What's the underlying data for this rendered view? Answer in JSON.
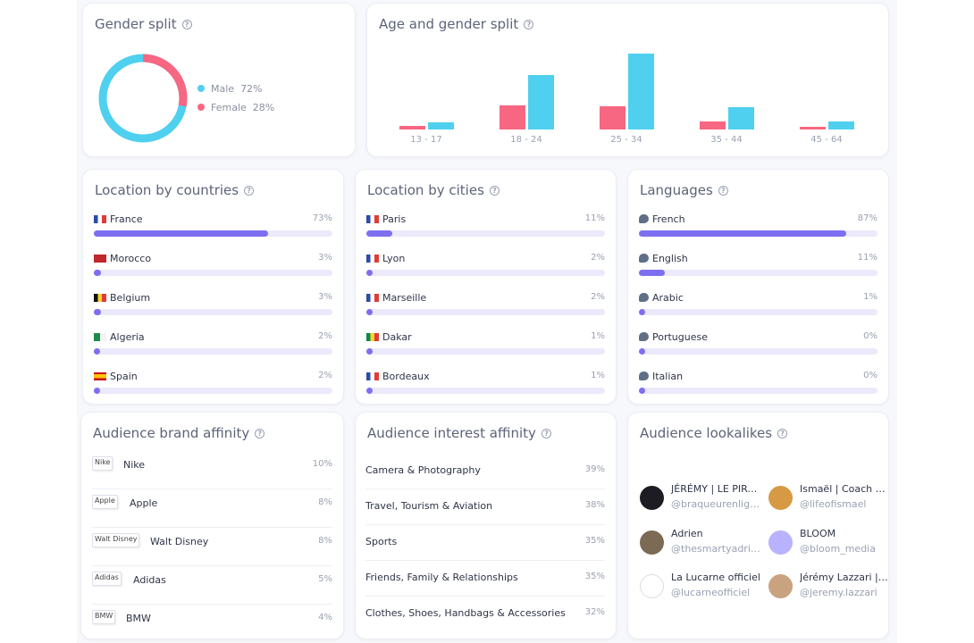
{
  "gender": {
    "title": "Gender split",
    "help": "?",
    "legend": [
      {
        "label": "Male",
        "value": "72%",
        "fraction": 0.72,
        "color": "#4fd0ee"
      },
      {
        "label": "Female",
        "value": "28%",
        "fraction": 0.28,
        "color": "#f76782"
      }
    ]
  },
  "age_gender": {
    "title": "Age and gender split",
    "help": "?",
    "chart_data": {
      "type": "bar",
      "categories": [
        "13 - 17",
        "18 - 24",
        "25 - 34",
        "35 - 44",
        "45 - 64"
      ],
      "series": [
        {
          "name": "Female",
          "color": "#f76782",
          "values": [
            1.5,
            10.5,
            10,
            3.5,
            1
          ]
        },
        {
          "name": "Male",
          "color": "#4fd0ee",
          "values": [
            3,
            23.5,
            32.5,
            9.5,
            3.5
          ]
        }
      ],
      "ylim": [
        0,
        33
      ]
    }
  },
  "countries": {
    "title": "Location by countries",
    "help": "?",
    "items": [
      {
        "name": "France",
        "pct": "73%",
        "value": 0.73,
        "flag": "fr"
      },
      {
        "name": "Morocco",
        "pct": "3%",
        "value": 0.03,
        "flag": "ma"
      },
      {
        "name": "Belgium",
        "pct": "3%",
        "value": 0.03,
        "flag": "be"
      },
      {
        "name": "Algeria",
        "pct": "2%",
        "value": 0.02,
        "flag": "dz"
      },
      {
        "name": "Spain",
        "pct": "2%",
        "value": 0.02,
        "flag": "es"
      }
    ]
  },
  "cities": {
    "title": "Location by cities",
    "help": "?",
    "items": [
      {
        "name": "Paris",
        "pct": "11%",
        "value": 0.11,
        "flag": "fr"
      },
      {
        "name": "Lyon",
        "pct": "2%",
        "value": 0.02,
        "flag": "fr"
      },
      {
        "name": "Marseille",
        "pct": "2%",
        "value": 0.02,
        "flag": "fr"
      },
      {
        "name": "Dakar",
        "pct": "1%",
        "value": 0.01,
        "flag": "sn"
      },
      {
        "name": "Bordeaux",
        "pct": "1%",
        "value": 0.01,
        "flag": "fr"
      }
    ]
  },
  "languages": {
    "title": "Languages",
    "help": "?",
    "items": [
      {
        "name": "French",
        "pct": "87%",
        "value": 0.87
      },
      {
        "name": "English",
        "pct": "11%",
        "value": 0.11
      },
      {
        "name": "Arabic",
        "pct": "1%",
        "value": 0.01
      },
      {
        "name": "Portuguese",
        "pct": "0%",
        "value": 0.0
      },
      {
        "name": "Italian",
        "pct": "0%",
        "value": 0.0
      }
    ]
  },
  "brands": {
    "title": "Audience brand affinity",
    "help": "?",
    "items": [
      {
        "logo_alt": "Nike",
        "name": "Nike",
        "pct": "10%"
      },
      {
        "logo_alt": "Apple",
        "name": "Apple",
        "pct": "8%"
      },
      {
        "logo_alt": "Walt Disney",
        "name": "Walt Disney",
        "pct": "8%"
      },
      {
        "logo_alt": "Adidas",
        "name": "Adidas",
        "pct": "5%"
      },
      {
        "logo_alt": "BMW",
        "name": "BMW",
        "pct": "4%"
      }
    ]
  },
  "interests": {
    "title": "Audience interest affinity",
    "help": "?",
    "items": [
      {
        "name": "Camera & Photography",
        "pct": "39%"
      },
      {
        "name": "Travel, Tourism & Aviation",
        "pct": "38%"
      },
      {
        "name": "Sports",
        "pct": "35%"
      },
      {
        "name": "Friends, Family & Relationships",
        "pct": "35%"
      },
      {
        "name": "Clothes, Shoes, Handbags & Accessories",
        "pct": "32%"
      }
    ]
  },
  "lookalikes": {
    "title": "Audience lookalikes",
    "help": "?",
    "items": [
      {
        "name": "JÉRÉMY | LE PIRATE",
        "handle": "@braqueurenligne",
        "avatar_color": "#1c1c22"
      },
      {
        "name": "Ismaël | Coach Sportif",
        "handle": "@lifeofismael",
        "avatar_color": "#d79a44"
      },
      {
        "name": "Adrien",
        "handle": "@thesmartyadrien",
        "avatar_color": "#7b6a54"
      },
      {
        "name": "BLOOM",
        "handle": "@bloom_media",
        "avatar_color": "#b8b2ff"
      },
      {
        "name": "La Lucarne officiel",
        "handle": "@lucarneofficiel",
        "avatar_color": "#ffffff"
      },
      {
        "name": "Jérémy Lazzari | Coach",
        "handle": "@jeremy.lazzari",
        "avatar_color": "#c9a27f"
      }
    ]
  }
}
